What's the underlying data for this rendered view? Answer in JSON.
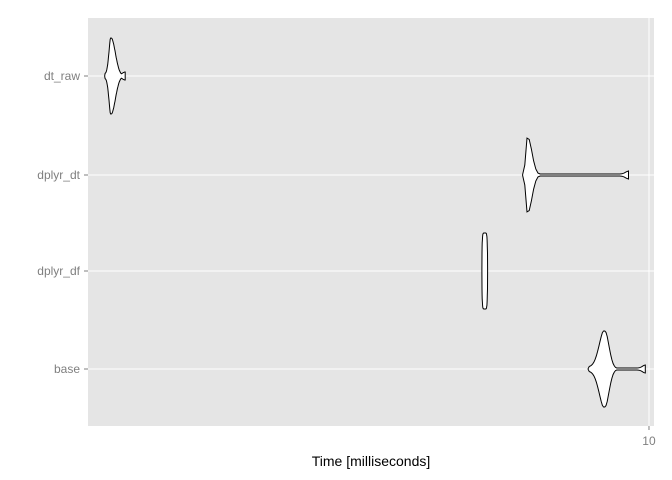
{
  "chart_data": {
    "type": "violin",
    "categories": [
      "dt_raw",
      "dplyr_dt",
      "dplyr_df",
      "base"
    ],
    "xlabel": "Time [milliseconds]",
    "ylabel": "",
    "xscale": "log",
    "xlim": [
      2.12,
      10.14
    ],
    "x_ticks": [
      10
    ],
    "x_tick_labels": [
      "10"
    ],
    "grid": true,
    "panel_color": "#e5e5e5",
    "grid_color": "#ffffff",
    "series": [
      {
        "category": "dt_raw",
        "min": 2.22,
        "max": 2.35,
        "median": 2.26,
        "peak_density_at": 2.26
      },
      {
        "category": "dplyr_dt",
        "min": 7.05,
        "max": 9.45,
        "median": 7.15,
        "peak_density_at": 7.15
      },
      {
        "category": "dplyr_df",
        "min": 6.3,
        "max": 6.4,
        "median": 6.35,
        "peak_density_at": 6.35
      },
      {
        "category": "base",
        "min": 8.45,
        "max": 9.9,
        "median": 8.85,
        "peak_density_at": 8.85
      }
    ]
  }
}
